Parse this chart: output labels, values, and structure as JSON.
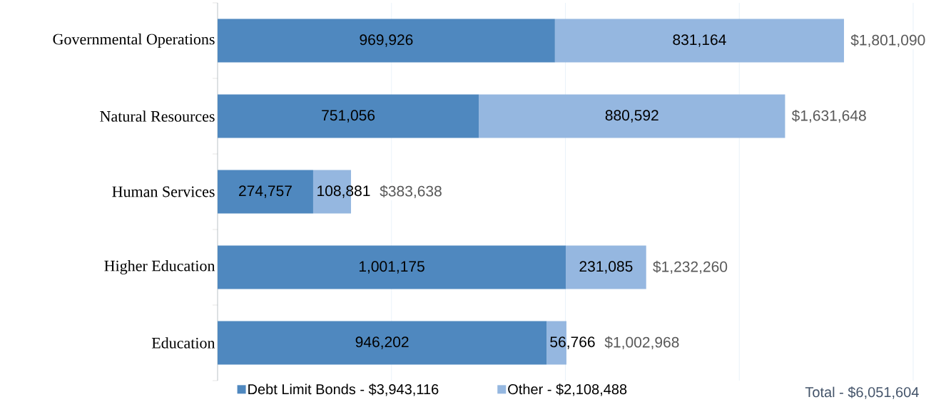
{
  "chart_data": {
    "type": "bar",
    "orientation": "horizontal",
    "stacked": true,
    "categories": [
      "Governmental Operations",
      "Natural Resources",
      "Human Services",
      "Higher Education",
      "Education"
    ],
    "series": [
      {
        "name": "Debt Limit Bonds - $3,943,116",
        "color": "#4f88bf",
        "values": [
          969926,
          751056,
          274757,
          1001175,
          946202
        ],
        "value_labels": [
          "969,926",
          "751,056",
          "274,757",
          "1,001,175",
          "946,202"
        ]
      },
      {
        "name": "Other - $2,108,488",
        "color": "#95b7e0",
        "values": [
          831164,
          880592,
          108881,
          231085,
          56766
        ],
        "value_labels": [
          "831,164",
          "880,592",
          "108,881",
          "231,085",
          "56,766"
        ]
      }
    ],
    "totals": [
      "$1,801,090",
      "$1,631,648",
      "$383,638",
      "$1,232,260",
      "$1,002,968"
    ],
    "annotations": [
      "Total - $6,051,604"
    ],
    "xlim": [
      0,
      2000000
    ],
    "xticks": [
      {
        "value": 0,
        "label": null
      },
      {
        "value": 500000,
        "label": null
      },
      {
        "value": 1000000,
        "label": null
      },
      {
        "value": 1500000,
        "label": null
      },
      {
        "value": 2000000,
        "label": null
      }
    ],
    "grid": "x",
    "legend": "bottom",
    "tick_labels": "y"
  }
}
